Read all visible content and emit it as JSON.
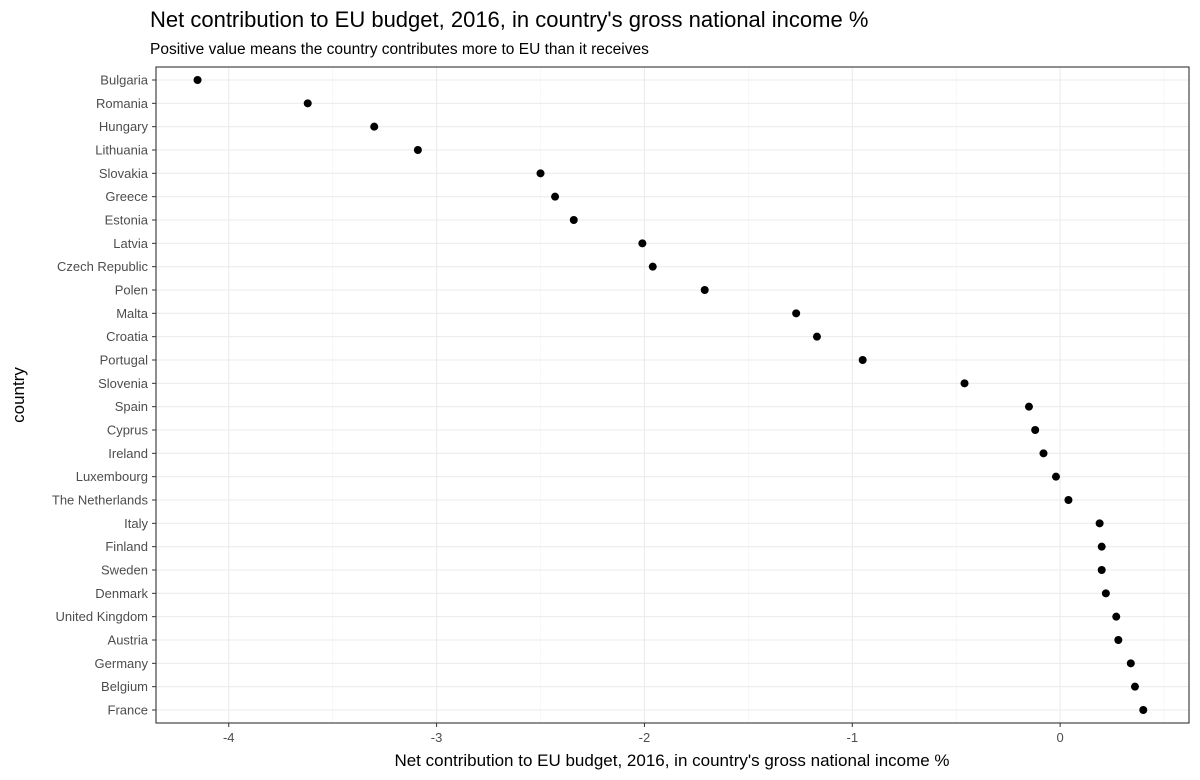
{
  "chart_data": {
    "type": "scatter",
    "title": "Net contribution to EU budget, 2016, in country's gross national income %",
    "subtitle": "Positive value means the country contributes more to EU than it receives",
    "xlabel": "Net contribution to EU budget, 2016, in country's gross national income %",
    "ylabel": "country",
    "xlim": [
      -4.35,
      0.62
    ],
    "xticks": [
      -4,
      -3,
      -2,
      -1,
      0
    ],
    "grid": true,
    "legend": "none",
    "point_color": "#000000",
    "categories": [
      "Bulgaria",
      "Romania",
      "Hungary",
      "Lithuania",
      "Slovakia",
      "Greece",
      "Estonia",
      "Latvia",
      "Czech Republic",
      "Polen",
      "Malta",
      "Croatia",
      "Portugal",
      "Slovenia",
      "Spain",
      "Cyprus",
      "Ireland",
      "Luxembourg",
      "The Netherlands",
      "Italy",
      "Finland",
      "Sweden",
      "Denmark",
      "United Kingdom",
      "Austria",
      "Germany",
      "Belgium",
      "France"
    ],
    "values": [
      -4.15,
      -3.62,
      -3.3,
      -3.09,
      -2.5,
      -2.43,
      -2.34,
      -2.01,
      -1.96,
      -1.71,
      -1.27,
      -1.17,
      -0.95,
      -0.46,
      -0.15,
      -0.12,
      -0.08,
      -0.02,
      0.04,
      0.19,
      0.2,
      0.2,
      0.22,
      0.27,
      0.28,
      0.34,
      0.36,
      0.4
    ]
  }
}
